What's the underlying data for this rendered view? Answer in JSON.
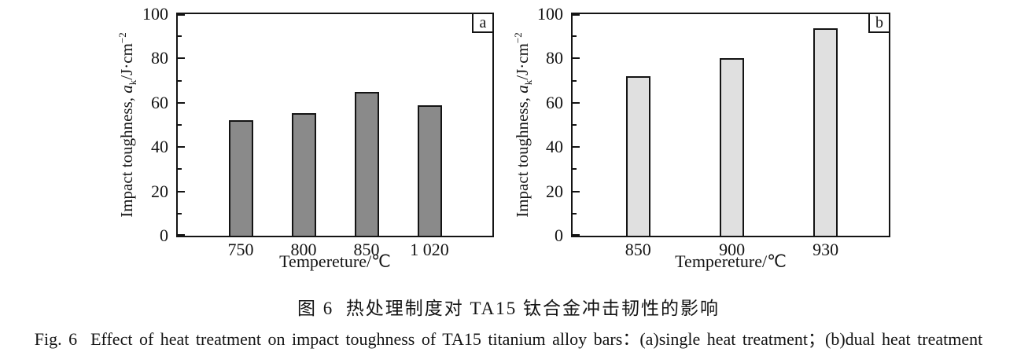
{
  "figure": {
    "caption_zh": "图 6  热处理制度对 TA15 钛合金冲击韧性的影响",
    "caption_en": "Fig. 6  Effect of heat treatment on impact toughness of TA15 titanium alloy bars：(a)single heat treatment；(b)dual heat treatment"
  },
  "shared": {
    "ylabel": {
      "prefix": "Impact toughness, ",
      "var": "a",
      "sub": "k",
      "unit": "/J·cm",
      "sup": "−2"
    },
    "xlabel": "Tempereture/℃"
  },
  "chart_data": [
    {
      "type": "bar",
      "panel": "a",
      "categories": [
        "750",
        "800",
        "850",
        "1 020"
      ],
      "values": [
        52,
        55.5,
        65,
        59
      ],
      "xlabel": "Tempereture/℃",
      "ylabel": "Impact toughness, ak/J·cm−2",
      "ylim": [
        0,
        100
      ],
      "yticks": [
        0,
        20,
        40,
        60,
        80,
        100
      ],
      "yminorticks": [
        10,
        30,
        50,
        70,
        90
      ],
      "grid": false,
      "legend": "none",
      "bar_color": "#8a8a8a",
      "bar_border": "#141414",
      "bar_center_fracs": [
        0.2,
        0.4,
        0.6,
        0.8
      ]
    },
    {
      "type": "bar",
      "panel": "b",
      "categories": [
        "850",
        "900",
        "930"
      ],
      "values": [
        72,
        80,
        93.5
      ],
      "xlabel": "Tempereture/℃",
      "ylabel": "Impact toughness, ak/J·cm−2",
      "ylim": [
        0,
        100
      ],
      "yticks": [
        0,
        20,
        40,
        60,
        80,
        100
      ],
      "yminorticks": [
        10,
        30,
        50,
        70,
        90
      ],
      "grid": false,
      "legend": "none",
      "bar_color": "#e0e0e0",
      "bar_border": "#141414",
      "bar_center_fracs": [
        0.207,
        0.504,
        0.8
      ]
    }
  ]
}
